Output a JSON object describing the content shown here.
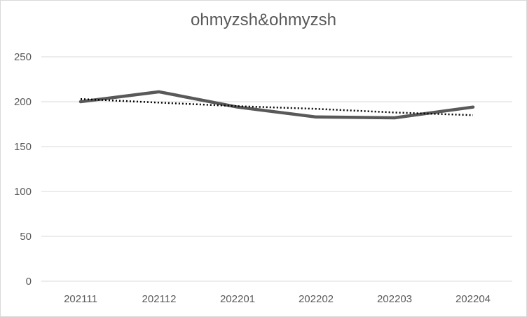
{
  "chart_data": {
    "type": "line",
    "title": "ohmyzsh&ohmyzsh",
    "xlabel": "",
    "ylabel": "",
    "categories": [
      "202111",
      "202112",
      "202201",
      "202202",
      "202203",
      "202204"
    ],
    "series": [
      {
        "values": [
          200,
          211,
          194,
          183,
          182,
          194
        ],
        "color": "#595959",
        "style": "solid"
      },
      {
        "values": [
          203,
          199,
          195,
          192,
          188,
          185
        ],
        "color": "#000000",
        "style": "dotted",
        "kind": "trendline"
      }
    ],
    "ylim": [
      0,
      250
    ],
    "yticks": [
      0,
      50,
      100,
      150,
      200,
      250
    ],
    "grid": true,
    "legend": "none"
  }
}
